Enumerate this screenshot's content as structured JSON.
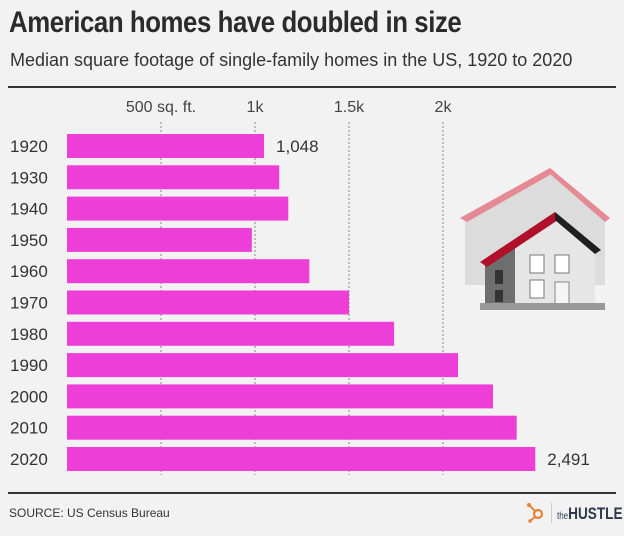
{
  "title": "American homes have doubled in size",
  "subtitle": "Median square footage of single-family homes in the US, 1920 to 2020",
  "source": "SOURCE: US Census Bureau",
  "brand": {
    "prefix": "the",
    "name": "HUSTLE",
    "logo_icon": "hubspot-sprocket-icon"
  },
  "colors": {
    "bar": "#ee3ed8",
    "background": "#f2f2f2",
    "text": "#333333",
    "roof": "#c0102a"
  },
  "chart_data": {
    "type": "bar",
    "orientation": "horizontal",
    "title": "American homes have doubled in size",
    "subtitle": "Median square footage of single-family homes in the US, 1920 to 2020",
    "categories": [
      "1920",
      "1930",
      "1940",
      "1950",
      "1960",
      "1970",
      "1980",
      "1990",
      "2000",
      "2010",
      "2020"
    ],
    "values": [
      1048,
      1129,
      1177,
      983,
      1289,
      1500,
      1740,
      2080,
      2266,
      2392,
      2491
    ],
    "data_labels": {
      "1920": "1,048",
      "2020": "2,491"
    },
    "x_ticks": [
      {
        "value": 500,
        "label": "500 sq. ft."
      },
      {
        "value": 1000,
        "label": "1k"
      },
      {
        "value": 1500,
        "label": "1.5k"
      },
      {
        "value": 2000,
        "label": "2k"
      }
    ],
    "xlim": [
      0,
      2600
    ],
    "grid": "vertical dotted",
    "legend": "none"
  }
}
